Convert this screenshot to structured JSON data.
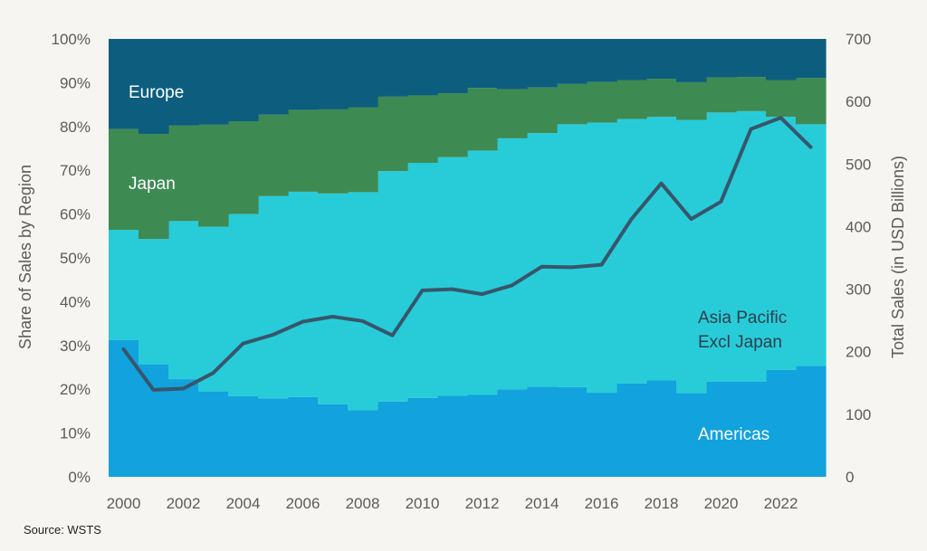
{
  "chart_data": {
    "type": "area",
    "years": [
      2000,
      2001,
      2002,
      2003,
      2004,
      2005,
      2006,
      2007,
      2008,
      2009,
      2010,
      2011,
      2012,
      2013,
      2014,
      2015,
      2016,
      2017,
      2018,
      2019,
      2020,
      2021,
      2022,
      2023
    ],
    "x_ticks": [
      "2000",
      "2002",
      "2004",
      "2006",
      "2008",
      "2010",
      "2012",
      "2014",
      "2016",
      "2018",
      "2020",
      "2022"
    ],
    "left_axis": {
      "label": "Share of Sales by Region",
      "ylim": [
        0,
        100
      ],
      "ticks": [
        "0%",
        "10%",
        "20%",
        "30%",
        "40%",
        "50%",
        "60%",
        "70%",
        "80%",
        "90%",
        "100%"
      ]
    },
    "right_axis": {
      "label": "Total Sales (in USD Billions)",
      "ylim": [
        0,
        700
      ],
      "ticks": [
        "0",
        "100",
        "200",
        "300",
        "400",
        "500",
        "600",
        "700"
      ]
    },
    "stack_series": [
      {
        "name": "Americas",
        "color": "#12a2dd",
        "values": [
          31.2,
          25.7,
          22.3,
          19.5,
          18.4,
          17.9,
          18.2,
          16.6,
          15.2,
          17.2,
          18.0,
          18.5,
          18.7,
          20.0,
          20.6,
          20.5,
          19.2,
          21.3,
          22.0,
          19.1,
          21.7,
          21.7,
          24.4,
          25.3
        ]
      },
      {
        "name": "Asia Pacific Excl Japan",
        "color": "#28ccd9",
        "values": [
          25.2,
          28.6,
          36.1,
          37.6,
          41.6,
          46.2,
          46.9,
          48.1,
          49.8,
          52.6,
          53.7,
          54.5,
          55.8,
          57.3,
          57.9,
          60.0,
          61.7,
          60.4,
          60.2,
          62.4,
          61.5,
          61.8,
          57.8,
          55.2
        ]
      },
      {
        "name": "Japan",
        "color": "#3e8a53",
        "values": [
          23.0,
          24.0,
          21.8,
          23.3,
          21.2,
          18.6,
          18.7,
          19.2,
          19.4,
          17.0,
          15.4,
          14.6,
          14.3,
          11.2,
          10.4,
          9.2,
          9.3,
          8.9,
          8.7,
          8.6,
          8.0,
          7.8,
          8.4,
          10.6
        ]
      },
      {
        "name": "Europe",
        "color": "#0d5e7e",
        "values": [
          20.6,
          21.7,
          19.8,
          19.6,
          18.8,
          17.3,
          16.2,
          16.1,
          15.6,
          13.2,
          12.9,
          12.4,
          11.2,
          11.5,
          11.1,
          10.3,
          9.8,
          9.4,
          9.1,
          9.9,
          8.8,
          8.7,
          9.4,
          8.9
        ]
      }
    ],
    "total_sales": {
      "name": "Total Sales",
      "color": "#37566b",
      "values": [
        204,
        139,
        141,
        166,
        213,
        227,
        248,
        256,
        249,
        226,
        298,
        300,
        292,
        306,
        336,
        335,
        339,
        412,
        469,
        412,
        440,
        556,
        574,
        527
      ]
    },
    "region_labels": {
      "europe": "Europe",
      "japan": "Japan",
      "asia_line1": "Asia Pacific",
      "asia_line2": "Excl Japan",
      "americas": "Americas"
    }
  },
  "source": "Source: WSTS"
}
